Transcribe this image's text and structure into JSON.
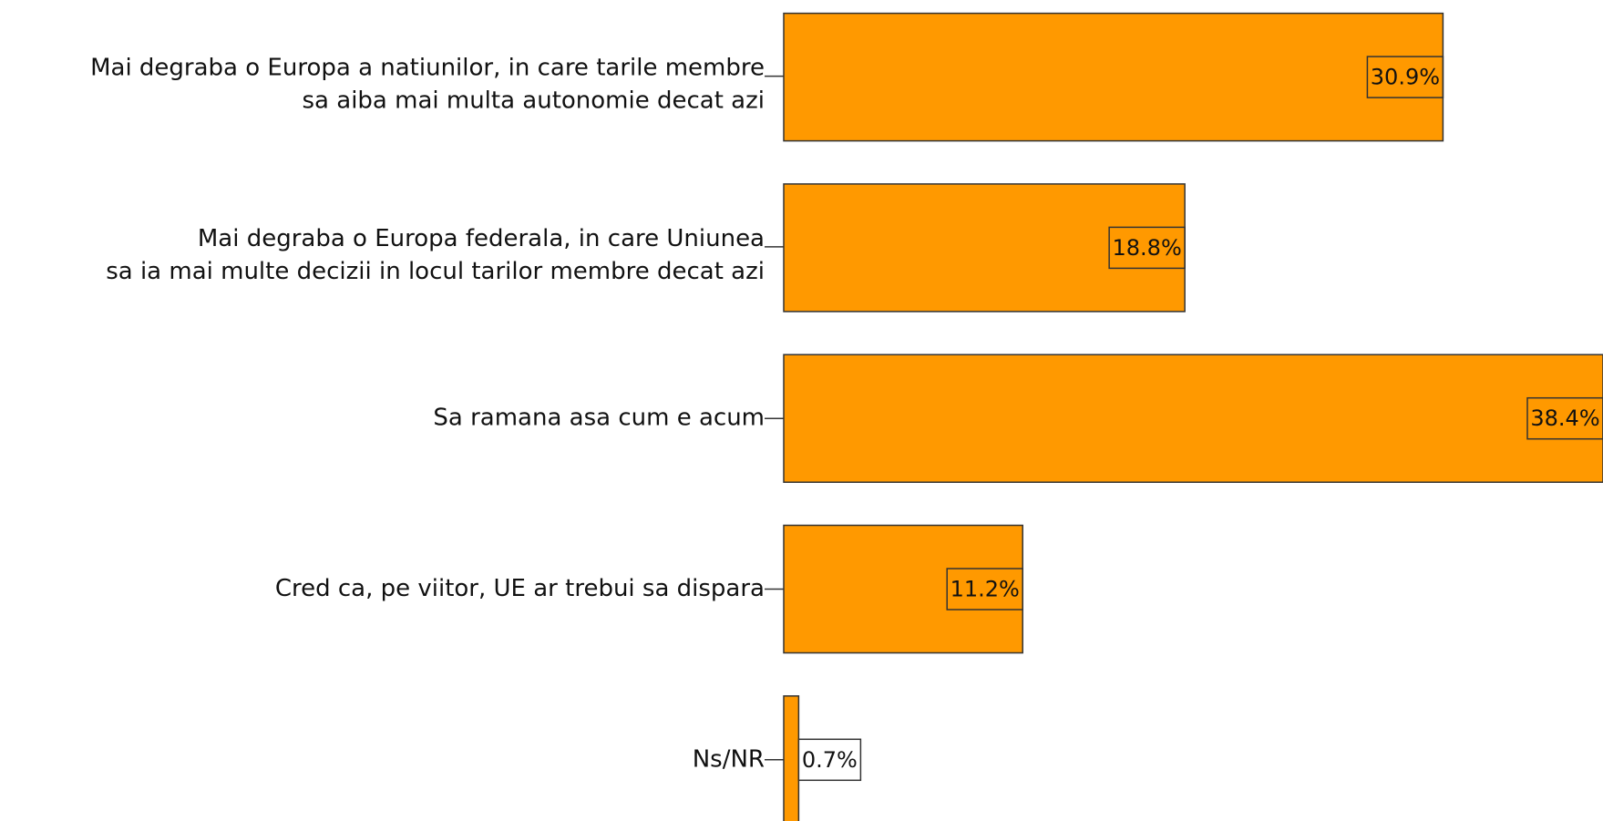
{
  "chart_data": {
    "type": "bar",
    "orientation": "horizontal",
    "categories": [
      "Mai degraba o Europa a natiunilor, in care tarile membre\nsa aiba mai multa autonomie decat azi",
      "Mai degraba o Europa federala, in care Uniunea\nsa ia mai multe decizii in locul tarilor membre decat azi",
      "Sa ramana asa cum e acum",
      "Cred ca, pe viitor, UE ar trebui sa dispara",
      "Ns/NR"
    ],
    "values": [
      30.9,
      18.8,
      38.4,
      11.2,
      0.7
    ],
    "value_labels": [
      "30.9%",
      "18.8%",
      "38.4%",
      "11.2%",
      "0.7%"
    ],
    "color": "#ff9900"
  }
}
